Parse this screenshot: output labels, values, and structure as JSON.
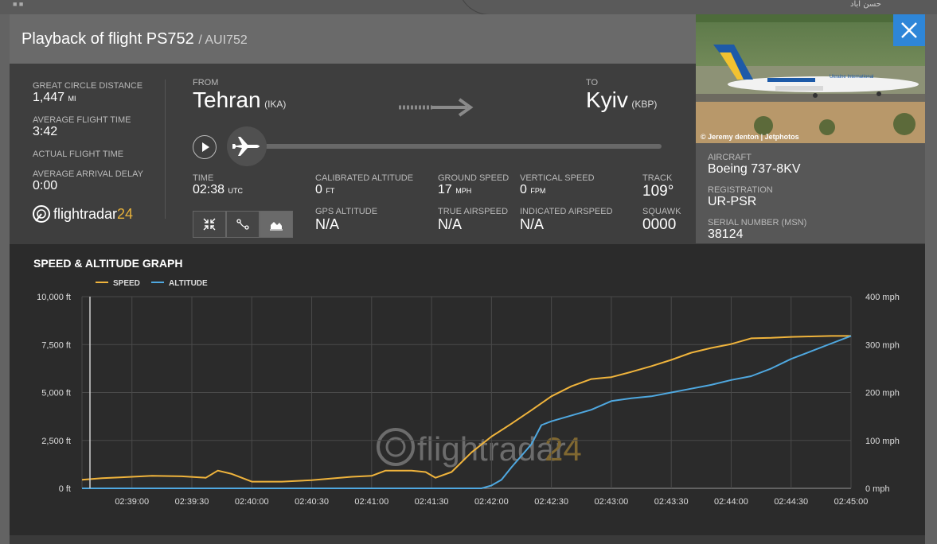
{
  "topbar": {
    "rtl_text": "حسن اباد"
  },
  "header": {
    "title": "Playback of flight PS752",
    "subtitle": "/ AUI752"
  },
  "photo": {
    "credit": "© Jeremy denton | Jetphotos",
    "livery_text": "Ukraine International"
  },
  "left_stats": {
    "great_circle_label": "GREAT CIRCLE DISTANCE",
    "great_circle_value": "1,447",
    "great_circle_unit": "MI",
    "avg_flight_label": "AVERAGE FLIGHT TIME",
    "avg_flight_value": "3:42",
    "actual_flight_label": "ACTUAL FLIGHT TIME",
    "avg_arrival_label": "AVERAGE ARRIVAL DELAY",
    "avg_arrival_value": "0:00"
  },
  "brand": {
    "name": "flightradar",
    "num": "24"
  },
  "route": {
    "from_label": "FROM",
    "from_city": "Tehran",
    "from_code": "(IKA)",
    "to_label": "TO",
    "to_city": "Kyiv",
    "to_code": "(KBP)"
  },
  "playback": {
    "progress": 0
  },
  "stats": {
    "time_label": "TIME",
    "time_value": "02:38",
    "time_unit": "UTC",
    "cal_alt_label": "CALIBRATED ALTITUDE",
    "cal_alt_value": "0",
    "cal_alt_unit": "FT",
    "gps_alt_label": "GPS ALTITUDE",
    "gps_alt_value": "N/A",
    "gs_label": "GROUND SPEED",
    "gs_value": "17",
    "gs_unit": "MPH",
    "tas_label": "TRUE AIRSPEED",
    "tas_value": "N/A",
    "vs_label": "VERTICAL SPEED",
    "vs_value": "0",
    "vs_unit": "FPM",
    "ias_label": "INDICATED AIRSPEED",
    "ias_value": "N/A",
    "track_label": "TRACK",
    "track_value": "109°",
    "squawk_label": "SQUAWK",
    "squawk_value": "0000"
  },
  "aircraft": {
    "aircraft_label": "AIRCRAFT",
    "aircraft_value": "Boeing 737-8KV",
    "reg_label": "REGISTRATION",
    "reg_value": "UR-PSR",
    "msn_label": "SERIAL NUMBER (MSN)",
    "msn_value": "38124"
  },
  "graph": {
    "title": "SPEED & ALTITUDE GRAPH"
  },
  "colors": {
    "speed": "#f0b43c",
    "altitude": "#4fa8e0",
    "brand_accent": "#e8b23a",
    "close_button": "#2e86d8"
  },
  "chart_data": {
    "type": "line",
    "title": "SPEED & ALTITUDE GRAPH",
    "legend_position": "top-left",
    "grid": true,
    "x_ticks": [
      "02:39:00",
      "02:39:30",
      "02:40:00",
      "02:40:30",
      "02:41:00",
      "02:41:30",
      "02:42:00",
      "02:42:30",
      "02:43:00",
      "02:43:30",
      "02:44:00",
      "02:44:30",
      "02:45:00"
    ],
    "x_range": [
      "02:38:35",
      "02:45:00"
    ],
    "y_left": {
      "label": "",
      "ticks": [
        "0 ft",
        "2,500 ft",
        "5,000 ft",
        "7,500 ft",
        "10,000 ft"
      ],
      "range": [
        0,
        10000
      ],
      "unit": "ft"
    },
    "y_right": {
      "label": "",
      "ticks": [
        "0 mph",
        "100 mph",
        "200 mph",
        "300 mph",
        "400 mph"
      ],
      "range": [
        0,
        400
      ],
      "unit": "mph"
    },
    "series": [
      {
        "name": "SPEED",
        "axis": "right",
        "points": [
          [
            "02:38:35",
            18
          ],
          [
            "02:38:45",
            21
          ],
          [
            "02:38:55",
            23
          ],
          [
            "02:39:10",
            26
          ],
          [
            "02:39:25",
            25
          ],
          [
            "02:39:37",
            22
          ],
          [
            "02:39:43",
            37
          ],
          [
            "02:39:50",
            30
          ],
          [
            "02:40:00",
            14
          ],
          [
            "02:40:15",
            14
          ],
          [
            "02:40:30",
            17
          ],
          [
            "02:40:50",
            24
          ],
          [
            "02:41:00",
            26
          ],
          [
            "02:41:07",
            37
          ],
          [
            "02:41:20",
            37
          ],
          [
            "02:41:27",
            34
          ],
          [
            "02:41:32",
            22
          ],
          [
            "02:41:40",
            34
          ],
          [
            "02:41:50",
            75
          ],
          [
            "02:42:00",
            108
          ],
          [
            "02:42:10",
            135
          ],
          [
            "02:42:20",
            163
          ],
          [
            "02:42:30",
            192
          ],
          [
            "02:42:40",
            213
          ],
          [
            "02:42:50",
            228
          ],
          [
            "02:43:00",
            232
          ],
          [
            "02:43:10",
            243
          ],
          [
            "02:43:20",
            255
          ],
          [
            "02:43:30",
            268
          ],
          [
            "02:43:40",
            283
          ],
          [
            "02:43:50",
            293
          ],
          [
            "02:44:00",
            301
          ],
          [
            "02:44:10",
            313
          ],
          [
            "02:44:20",
            314
          ],
          [
            "02:44:30",
            316
          ],
          [
            "02:44:40",
            317
          ],
          [
            "02:44:50",
            318
          ],
          [
            "02:45:00",
            318
          ]
        ]
      },
      {
        "name": "ALTITUDE",
        "axis": "left",
        "points": [
          [
            "02:38:35",
            0
          ],
          [
            "02:41:55",
            0
          ],
          [
            "02:42:00",
            150
          ],
          [
            "02:42:05",
            450
          ],
          [
            "02:42:10",
            1100
          ],
          [
            "02:42:20",
            2300
          ],
          [
            "02:42:25",
            3300
          ],
          [
            "02:42:30",
            3500
          ],
          [
            "02:42:40",
            3800
          ],
          [
            "02:42:50",
            4100
          ],
          [
            "02:43:00",
            4550
          ],
          [
            "02:43:10",
            4700
          ],
          [
            "02:43:20",
            4800
          ],
          [
            "02:43:30",
            5000
          ],
          [
            "02:43:40",
            5200
          ],
          [
            "02:43:50",
            5400
          ],
          [
            "02:44:00",
            5650
          ],
          [
            "02:44:10",
            5850
          ],
          [
            "02:44:20",
            6250
          ],
          [
            "02:44:30",
            6750
          ],
          [
            "02:44:40",
            7150
          ],
          [
            "02:44:50",
            7550
          ],
          [
            "02:45:00",
            7950
          ]
        ]
      }
    ]
  }
}
